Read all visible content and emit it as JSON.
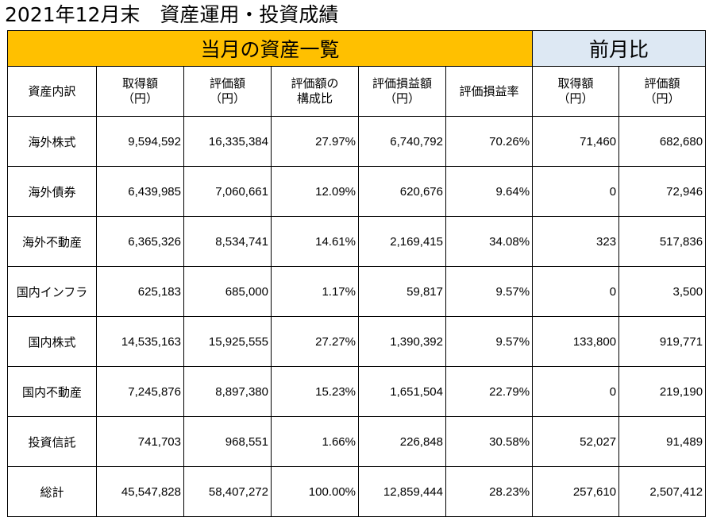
{
  "page_title": "2021年12月末　資産運用・投資成績",
  "bands": {
    "current": "当月の資産一覧",
    "previous": "前月比"
  },
  "headers": [
    [
      "資産内訳"
    ],
    [
      "取得額",
      "（円）"
    ],
    [
      "評価額",
      "（円）"
    ],
    [
      "評価額の",
      "構成比"
    ],
    [
      "評価損益額",
      "（円）"
    ],
    [
      "評価損益率"
    ],
    [
      "取得額",
      "（円）"
    ],
    [
      "評価額",
      "（円）"
    ]
  ],
  "rows": [
    [
      "海外株式",
      "9,594,592",
      "16,335,384",
      "27.97%",
      "6,740,792",
      "70.26%",
      "71,460",
      "682,680"
    ],
    [
      "海外債券",
      "6,439,985",
      "7,060,661",
      "12.09%",
      "620,676",
      "9.64%",
      "0",
      "72,946"
    ],
    [
      "海外不動産",
      "6,365,326",
      "8,534,741",
      "14.61%",
      "2,169,415",
      "34.08%",
      "323",
      "517,836"
    ],
    [
      "国内インフラ",
      "625,183",
      "685,000",
      "1.17%",
      "59,817",
      "9.57%",
      "0",
      "3,500"
    ],
    [
      "国内株式",
      "14,535,163",
      "15,925,555",
      "27.27%",
      "1,390,392",
      "9.57%",
      "133,800",
      "919,771"
    ],
    [
      "国内不動産",
      "7,245,876",
      "8,897,380",
      "15.23%",
      "1,651,504",
      "22.79%",
      "0",
      "219,190"
    ],
    [
      "投資信託",
      "741,703",
      "968,551",
      "1.66%",
      "226,848",
      "30.58%",
      "52,027",
      "91,489"
    ],
    [
      "総計",
      "45,547,828",
      "58,407,272",
      "100.00%",
      "12,859,444",
      "28.23%",
      "257,610",
      "2,507,412"
    ]
  ],
  "colors": {
    "current_band": "#ffc000",
    "previous_band": "#dde8f3"
  }
}
